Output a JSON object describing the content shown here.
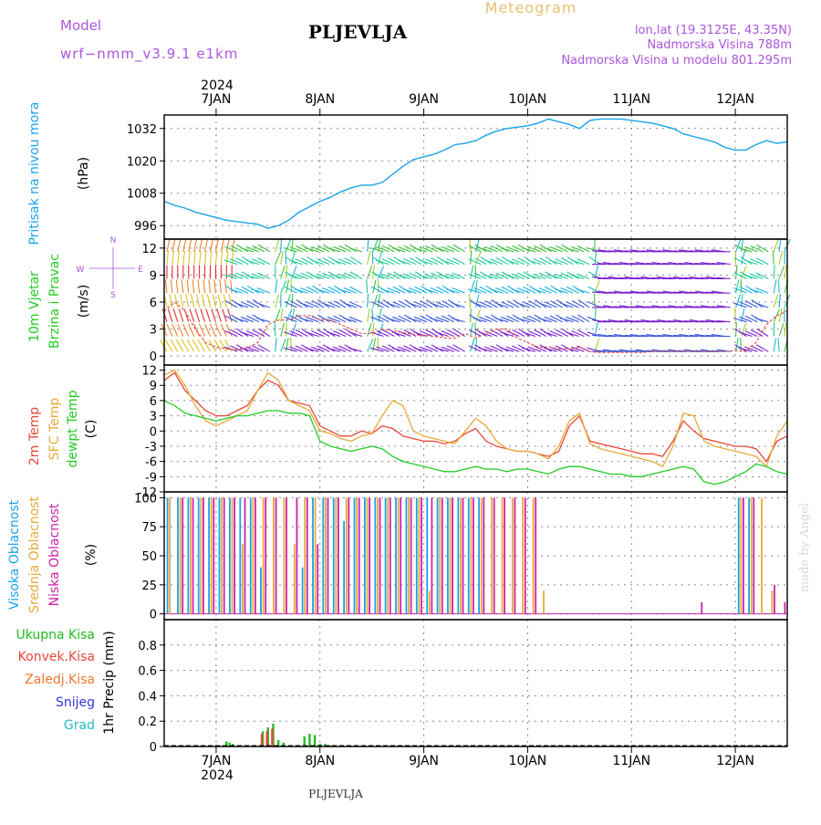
{
  "header": {
    "model_label": "Model",
    "model_name": "wrf−nmm_v3.9.1  e1km",
    "station": "PLJEVLJA",
    "meteogram": "Meteogram",
    "lonlat": "lon,lat (19.3125E, 43.35N)",
    "elevation": "Nadmorska Visina 788m",
    "model_elevation": "Nadmorska Visina u modelu 801.295m",
    "footer_station": "PLJEVLJA",
    "watermark": "made by Angel",
    "year_top": "2024",
    "year_bottom": "2024"
  },
  "colors": {
    "pressure": "#1aa3e8",
    "temp2m": "#e8473a",
    "sfc_temp": "#e8a93a",
    "dewpoint": "#22cc22",
    "visoka": "#1aa3e8",
    "srednja": "#e8a93a",
    "niska": "#cc22aa",
    "ukupna": "#22bb22",
    "konvek": "#e8473a",
    "zaledj": "#ee7733",
    "snijeg": "#3333dd",
    "grad": "#22bbbb",
    "wind_side": "#22cc22",
    "wind_dir": "#aa55dd"
  },
  "chart_data": [
    {
      "type": "line",
      "panel": "pressure",
      "labels": [
        "Pritisak na nivou mora",
        "(hPa)"
      ],
      "x_ticks": [
        "7JAN",
        "8JAN",
        "9JAN",
        "10JAN",
        "11JAN",
        "12JAN"
      ],
      "x_range_days": [
        6.5,
        12.5
      ],
      "ylim": [
        991,
        1037
      ],
      "y_ticks": [
        996,
        1008,
        1020,
        1032
      ],
      "grid": true,
      "series": [
        {
          "x": [
            6.5,
            6.6,
            6.7,
            6.8,
            6.9,
            7.0,
            7.1,
            7.2,
            7.3,
            7.4,
            7.5,
            7.6,
            7.7,
            7.8,
            7.9,
            8.0,
            8.1,
            8.2,
            8.3,
            8.4,
            8.5,
            8.6,
            8.7,
            8.8,
            8.9,
            9.0,
            9.1,
            9.2,
            9.3,
            9.4,
            9.5,
            9.6,
            9.7,
            9.8,
            9.9,
            10.0,
            10.1,
            10.2,
            10.3,
            10.4,
            10.5,
            10.6,
            10.7,
            10.8,
            10.9,
            11.0,
            11.1,
            11.2,
            11.3,
            11.4,
            11.5,
            11.6,
            11.7,
            11.8,
            11.9,
            12.0,
            12.1,
            12.2,
            12.3,
            12.4,
            12.5
          ],
          "values": [
            1005,
            1003.5,
            1002.5,
            1001,
            1000,
            999,
            998,
            997.5,
            997,
            996.5,
            995,
            996,
            998,
            1001,
            1003,
            1005,
            1006.5,
            1008.5,
            1010,
            1011,
            1011,
            1012,
            1015,
            1018,
            1020.5,
            1021.5,
            1022.5,
            1024,
            1026,
            1026.5,
            1027.5,
            1029.5,
            1031,
            1032,
            1032.5,
            1033,
            1034,
            1035.5,
            1034.5,
            1033.5,
            1032,
            1035,
            1035.5,
            1035.5,
            1035.5,
            1035,
            1034.5,
            1034,
            1033,
            1032,
            1030,
            1029,
            1028,
            1027,
            1025,
            1024,
            1024,
            1026,
            1027.5,
            1026.5,
            1027
          ]
        }
      ]
    },
    {
      "type": "vector",
      "panel": "wind",
      "labels": [
        "10m Vjetar",
        "Brzina i Pravac",
        "(m/s)"
      ],
      "direction_legend": [
        "N",
        "W",
        "E",
        "S"
      ],
      "ylim": [
        -1,
        13
      ],
      "y_ticks": [
        0,
        3,
        6,
        9,
        12
      ],
      "grid": true,
      "series": [
        {
          "name": "speed",
          "x": [
            6.5,
            6.6,
            6.7,
            6.8,
            6.9,
            7.0,
            7.1,
            7.2,
            7.3,
            7.4,
            7.5,
            7.6,
            7.7,
            7.8,
            7.9,
            8.0,
            8.1,
            8.2,
            8.3,
            8.4,
            8.5,
            8.6,
            8.7,
            8.8,
            8.9,
            9.0,
            9.1,
            9.2,
            9.3,
            9.4,
            9.5,
            9.6,
            9.7,
            9.8,
            9.9,
            10.0,
            10.1,
            10.2,
            10.3,
            10.4,
            10.5,
            10.6,
            10.7,
            10.8,
            10.9,
            11.0,
            11.1,
            11.2,
            11.3,
            11.4,
            11.5,
            11.6,
            11.7,
            11.8,
            11.9,
            12.0,
            12.1,
            12.2,
            12.3,
            12.4,
            12.5
          ],
          "values": [
            5,
            6,
            5,
            3,
            1.5,
            1,
            0.8,
            0.7,
            0.9,
            1.5,
            3.5,
            4,
            4,
            4.5,
            4.5,
            4,
            4,
            3.5,
            3,
            2.5,
            2.5,
            3,
            2.8,
            2.6,
            2.4,
            2.3,
            2.2,
            2.0,
            2.0,
            2.5,
            2.0,
            2.5,
            3,
            3,
            2,
            1.5,
            1,
            1,
            0.8,
            0.8,
            1,
            0.5,
            0.4,
            0.4,
            0.4,
            0.4,
            0.4,
            0.5,
            0.5,
            0.5,
            0.6,
            0.5,
            0.5,
            0.5,
            0.5,
            0.6,
            0.5,
            1.5,
            3.5,
            4.5,
            5
          ]
        }
      ]
    },
    {
      "type": "line",
      "panel": "temperature",
      "labels": [
        "2m Temp",
        "SFC Temp",
        "dewpt Temp",
        "(C)"
      ],
      "ylim": [
        -12,
        13
      ],
      "y_ticks": [
        -12,
        -9,
        -6,
        -3,
        0,
        3,
        6,
        9,
        12
      ],
      "grid": true,
      "x": [
        6.5,
        6.6,
        6.7,
        6.8,
        6.9,
        7.0,
        7.1,
        7.2,
        7.3,
        7.4,
        7.5,
        7.6,
        7.7,
        7.8,
        7.9,
        8.0,
        8.1,
        8.2,
        8.3,
        8.4,
        8.5,
        8.6,
        8.7,
        8.8,
        8.9,
        9.0,
        9.1,
        9.2,
        9.3,
        9.4,
        9.5,
        9.6,
        9.7,
        9.8,
        9.9,
        10.0,
        10.1,
        10.2,
        10.3,
        10.4,
        10.5,
        10.6,
        10.7,
        10.8,
        10.9,
        11.0,
        11.1,
        11.2,
        11.3,
        11.4,
        11.5,
        11.6,
        11.7,
        11.8,
        11.9,
        12.0,
        12.1,
        12.2,
        12.3,
        12.4,
        12.5
      ],
      "series": [
        {
          "name": "2m Temp",
          "values": [
            10,
            11.5,
            8,
            6,
            4,
            3,
            3,
            4,
            5,
            8,
            10,
            9,
            6,
            5.5,
            5,
            1,
            0,
            -1,
            -1,
            0,
            -0.5,
            1,
            0.5,
            -1,
            -1.5,
            -2,
            -2,
            -2.5,
            -2,
            -0.5,
            0.5,
            -2,
            -3,
            -3.5,
            -4,
            -4,
            -4.5,
            -5,
            -4,
            1,
            3,
            -2,
            -2.5,
            -3,
            -3.5,
            -4,
            -4.5,
            -4.5,
            -5,
            -2,
            2,
            0,
            -1.5,
            -2,
            -2.5,
            -3,
            -3,
            -3.5,
            -6,
            -2,
            -1
          ]
        },
        {
          "name": "SFC Temp",
          "values": [
            11,
            12,
            9,
            5,
            2,
            1,
            2,
            3,
            4,
            8,
            11.5,
            10,
            6,
            5,
            4,
            0,
            -0.5,
            -1.5,
            -2,
            -1,
            -0.5,
            3,
            6,
            5,
            0,
            -1,
            -1.5,
            -2,
            -2.5,
            0,
            2.5,
            1,
            -2,
            -3.5,
            -4,
            -4,
            -4.5,
            -5.5,
            -3,
            2,
            3.5,
            -2.5,
            -3.5,
            -4,
            -4.5,
            -5,
            -5.5,
            -6,
            -7,
            -3,
            3.5,
            3,
            -2,
            -3,
            -3.5,
            -4,
            -4.5,
            -5,
            -7,
            -1,
            2
          ]
        },
        {
          "name": "dewpt Temp",
          "values": [
            6,
            5,
            3.5,
            3,
            2.5,
            2,
            2.5,
            3,
            3,
            3.5,
            4,
            4,
            3.5,
            3.5,
            3,
            -2,
            -3,
            -3.5,
            -4,
            -3.5,
            -3,
            -3.5,
            -5,
            -6,
            -6.5,
            -7,
            -7.5,
            -8,
            -8,
            -7.5,
            -7,
            -7.5,
            -7.5,
            -8,
            -7.5,
            -7.5,
            -8,
            -8.5,
            -7.5,
            -7,
            -7,
            -7.5,
            -8,
            -8.5,
            -8.5,
            -9,
            -9,
            -8.5,
            -8,
            -7.5,
            -7,
            -7.5,
            -10,
            -10.5,
            -10,
            -9,
            -8,
            -6.5,
            -7,
            -8,
            -8.5
          ]
        }
      ]
    },
    {
      "type": "bar",
      "panel": "cloud",
      "labels": [
        "Visoka Oblacnost",
        "Srednja Oblacnost",
        "Niska Oblacnost",
        "(%)"
      ],
      "ylim": [
        -5,
        105
      ],
      "y_ticks": [
        0,
        25,
        50,
        75,
        100
      ],
      "grid": true,
      "x": [
        6.55,
        6.65,
        6.75,
        6.85,
        6.95,
        7.05,
        7.15,
        7.25,
        7.35,
        7.45,
        7.55,
        7.65,
        7.75,
        7.85,
        7.95,
        8.05,
        8.15,
        8.25,
        8.35,
        8.45,
        8.55,
        8.65,
        8.75,
        8.85,
        8.95,
        9.05,
        9.15,
        9.25,
        9.35,
        9.45,
        9.55,
        9.65,
        9.75,
        9.85,
        9.95,
        10.05,
        10.15,
        10.25,
        10.35,
        10.45,
        10.55,
        10.65,
        10.75,
        10.85,
        10.95,
        11.05,
        11.15,
        11.25,
        11.35,
        11.45,
        11.55,
        11.65,
        11.75,
        11.85,
        11.95,
        12.05,
        12.15,
        12.25,
        12.35,
        12.45
      ],
      "series": [
        {
          "name": "Visoka Oblacnost",
          "values": [
            100,
            100,
            100,
            100,
            100,
            100,
            100,
            100,
            100,
            40,
            0,
            0,
            0,
            40,
            100,
            100,
            100,
            80,
            100,
            100,
            100,
            100,
            100,
            100,
            100,
            100,
            100,
            100,
            100,
            100,
            100,
            0,
            0,
            0,
            0,
            0,
            0,
            0,
            0,
            0,
            0,
            0,
            0,
            0,
            0,
            0,
            0,
            0,
            0,
            0,
            0,
            0,
            0,
            0,
            0,
            100,
            100,
            0,
            0,
            0
          ]
        },
        {
          "name": "Srednja Oblacnost",
          "values": [
            100,
            100,
            100,
            100,
            100,
            100,
            100,
            60,
            100,
            100,
            100,
            100,
            60,
            100,
            100,
            100,
            100,
            100,
            100,
            100,
            100,
            100,
            100,
            100,
            100,
            20,
            100,
            100,
            100,
            100,
            100,
            100,
            100,
            100,
            100,
            100,
            20,
            0,
            0,
            0,
            0,
            0,
            0,
            0,
            0,
            0,
            0,
            0,
            0,
            0,
            0,
            0,
            0,
            0,
            0,
            100,
            100,
            100,
            20,
            0
          ]
        },
        {
          "name": "Niska Oblacnost",
          "values": [
            0,
            100,
            100,
            100,
            100,
            100,
            100,
            100,
            100,
            100,
            100,
            100,
            100,
            100,
            60,
            100,
            100,
            100,
            100,
            100,
            100,
            100,
            100,
            100,
            100,
            100,
            100,
            100,
            100,
            100,
            100,
            100,
            100,
            100,
            100,
            100,
            0,
            0,
            0,
            0,
            0,
            0,
            0,
            0,
            0,
            0,
            0,
            0,
            0,
            0,
            0,
            10,
            0,
            0,
            0,
            100,
            100,
            0,
            25,
            10
          ]
        }
      ]
    },
    {
      "type": "bar",
      "panel": "precip",
      "labels": [
        "1hr Precip (mm)"
      ],
      "legend": [
        "Ukupna  Kisa",
        "Konvek.Kisa",
        "Zaledj.Kisa",
        "Snijeg",
        "Grad"
      ],
      "ylim": [
        0,
        1.0
      ],
      "y_ticks": [
        0,
        0.2,
        0.4,
        0.6,
        0.8
      ],
      "grid": true,
      "series": [
        {
          "name": "Ukupna  Kisa",
          "x": [
            7.1,
            7.13,
            7.16,
            7.45,
            7.5,
            7.55,
            7.6,
            7.65,
            7.85,
            7.9,
            7.95,
            8.0,
            8.05,
            8.1
          ],
          "values": [
            0.04,
            0.03,
            0.02,
            0.12,
            0.15,
            0.18,
            0.05,
            0.03,
            0.08,
            0.1,
            0.09,
            0.02,
            0.02,
            0.01
          ]
        },
        {
          "name": "Konvek.Kisa",
          "x": [
            7.44,
            7.49,
            7.54
          ],
          "values": [
            0.1,
            0.12,
            0.14
          ]
        }
      ]
    }
  ]
}
